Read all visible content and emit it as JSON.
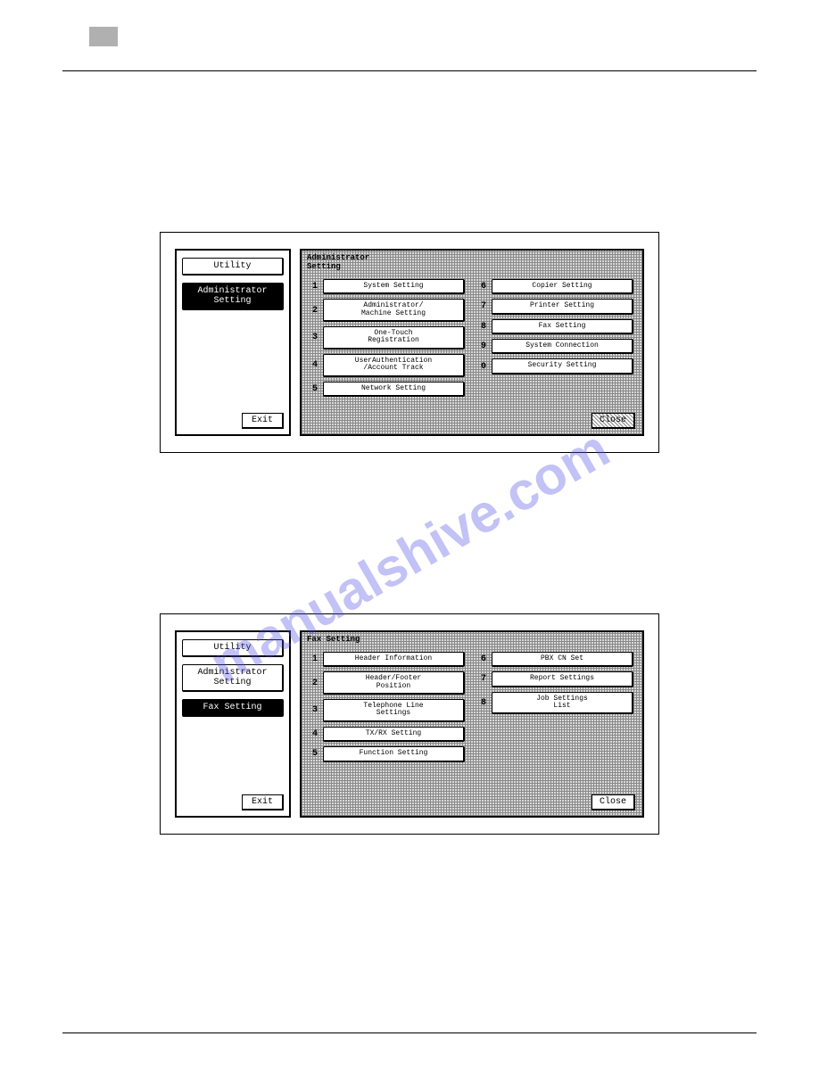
{
  "watermark": "manualshive.com",
  "screen1": {
    "left": {
      "utility": "Utility",
      "item_selected": "Administrator\nSetting",
      "exit": "Exit"
    },
    "right": {
      "title": "Administrator\nSetting",
      "left_col": [
        {
          "n": "1",
          "label": "System Setting"
        },
        {
          "n": "2",
          "label": "Administrator/\nMachine Setting"
        },
        {
          "n": "3",
          "label": "One-Touch\nRegistration"
        },
        {
          "n": "4",
          "label": "UserAuthentication\n/Account Track"
        },
        {
          "n": "5",
          "label": "Network Setting"
        }
      ],
      "right_col": [
        {
          "n": "6",
          "label": "Copier Setting"
        },
        {
          "n": "7",
          "label": "Printer Setting"
        },
        {
          "n": "8",
          "label": "Fax Setting"
        },
        {
          "n": "9",
          "label": "System Connection"
        },
        {
          "n": "0",
          "label": "Security Setting"
        }
      ],
      "close": "Close"
    }
  },
  "screen2": {
    "left": {
      "utility": "Utility",
      "item1": "Administrator\nSetting",
      "item_selected": "Fax Setting",
      "exit": "Exit"
    },
    "right": {
      "title": "Fax Setting",
      "left_col": [
        {
          "n": "1",
          "label": "Header Information"
        },
        {
          "n": "2",
          "label": "Header/Footer\nPosition"
        },
        {
          "n": "3",
          "label": "Telephone Line\nSettings"
        },
        {
          "n": "4",
          "label": "TX/RX Setting"
        },
        {
          "n": "5",
          "label": "Function Setting"
        }
      ],
      "right_col": [
        {
          "n": "6",
          "label": "PBX CN Set"
        },
        {
          "n": "7",
          "label": "Report Settings"
        },
        {
          "n": "8",
          "label": "Job Settings\nList"
        }
      ],
      "close": "Close"
    }
  }
}
